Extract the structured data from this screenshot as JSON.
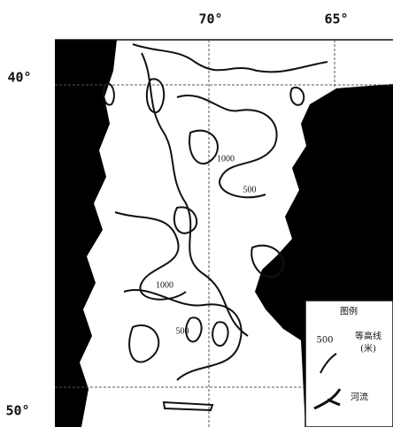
{
  "map": {
    "lon_labels": [
      "70°",
      "65°"
    ],
    "lat_labels": [
      "40°",
      "50°"
    ],
    "contour_labels": [
      "1000",
      "500",
      "1000",
      "500"
    ],
    "legend": {
      "title": "图例",
      "contour_value": "500",
      "contour_name": "等高线",
      "contour_unit": "(米)",
      "river_name": "河流"
    }
  }
}
